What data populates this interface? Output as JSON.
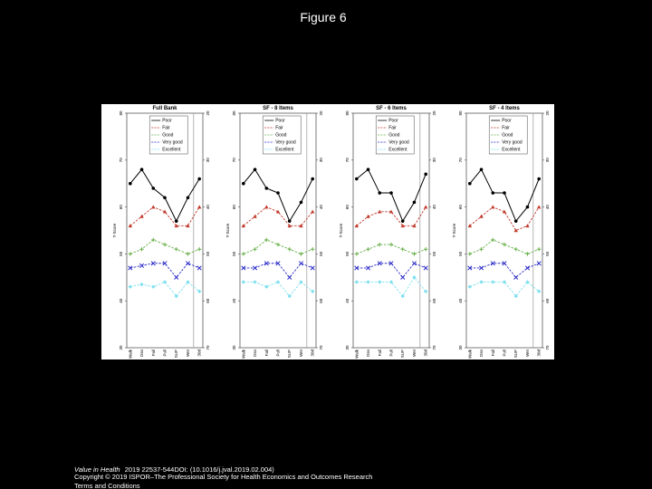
{
  "title": "Figure 6",
  "chart_data": [
    {
      "type": "line",
      "title": "Full Bank",
      "ylabel": "T-Score",
      "categories": [
        "Walk",
        "Dsn",
        "Fall",
        "Pull",
        "SUP",
        "Wet",
        "30d"
      ],
      "ylim": [
        30,
        80
      ],
      "yticks": [
        30,
        40,
        50,
        60,
        70,
        80
      ],
      "y2lim": [
        70,
        20
      ],
      "y2ticks": [
        20,
        30,
        40,
        50,
        60,
        70
      ],
      "series": [
        {
          "name": "Poor",
          "color": "#000000",
          "values": [
            65,
            68,
            64,
            62,
            57,
            62,
            66
          ]
        },
        {
          "name": "Fair",
          "color": "#c0392b",
          "values": [
            56,
            58,
            60,
            59,
            56,
            56,
            60
          ]
        },
        {
          "name": "Good",
          "color": "#6ab04c",
          "values": [
            50,
            51,
            53,
            52,
            51,
            50,
            51
          ]
        },
        {
          "name": "Very good",
          "color": "#2c2cc8",
          "values": [
            47,
            47.5,
            48,
            48,
            45,
            48,
            47
          ]
        },
        {
          "name": "Excellent",
          "color": "#7fe0f0",
          "values": [
            43,
            43.5,
            43,
            44,
            41,
            44,
            42
          ]
        }
      ]
    },
    {
      "type": "line",
      "title": "SF - 8 Items",
      "ylabel": "T-Score",
      "categories": [
        "Walk",
        "Dsn",
        "Fall",
        "Pull",
        "SUP",
        "Wet",
        "30d"
      ],
      "ylim": [
        30,
        80
      ],
      "yticks": [
        30,
        40,
        50,
        60,
        70,
        80
      ],
      "y2lim": [
        70,
        20
      ],
      "y2ticks": [
        20,
        30,
        40,
        50,
        60,
        70
      ],
      "series": [
        {
          "name": "Poor",
          "color": "#000000",
          "values": [
            65,
            68,
            64,
            63,
            57,
            61,
            66
          ]
        },
        {
          "name": "Fair",
          "color": "#c0392b",
          "values": [
            56,
            58,
            60,
            59,
            56,
            56,
            59
          ]
        },
        {
          "name": "Good",
          "color": "#6ab04c",
          "values": [
            50,
            51,
            53,
            52,
            51,
            50,
            51
          ]
        },
        {
          "name": "Very good",
          "color": "#2c2cc8",
          "values": [
            47,
            47,
            48,
            48,
            45,
            48,
            47
          ]
        },
        {
          "name": "Excellent",
          "color": "#7fe0f0",
          "values": [
            44,
            44,
            43,
            44,
            41,
            44,
            42
          ]
        }
      ]
    },
    {
      "type": "line",
      "title": "SF - 6 Items",
      "ylabel": "T-Score",
      "categories": [
        "Walk",
        "Dsn",
        "Fall",
        "Pull",
        "SUP",
        "Wet",
        "30d"
      ],
      "ylim": [
        30,
        80
      ],
      "yticks": [
        30,
        40,
        50,
        60,
        70,
        80
      ],
      "y2lim": [
        70,
        20
      ],
      "y2ticks": [
        20,
        30,
        40,
        50,
        60,
        70
      ],
      "series": [
        {
          "name": "Poor",
          "color": "#000000",
          "values": [
            66,
            68,
            63,
            63,
            57,
            61,
            67
          ]
        },
        {
          "name": "Fair",
          "color": "#c0392b",
          "values": [
            56,
            58,
            59,
            59,
            56,
            56,
            60
          ]
        },
        {
          "name": "Good",
          "color": "#6ab04c",
          "values": [
            50,
            51,
            52,
            52,
            51,
            50,
            51
          ]
        },
        {
          "name": "Very good",
          "color": "#2c2cc8",
          "values": [
            47,
            47,
            48,
            48,
            45,
            48,
            47
          ]
        },
        {
          "name": "Excellent",
          "color": "#7fe0f0",
          "values": [
            44,
            44,
            44,
            44,
            41,
            45,
            42
          ]
        }
      ]
    },
    {
      "type": "line",
      "title": "SF - 4 Items",
      "ylabel": "T-Score",
      "categories": [
        "Walk",
        "Dsn",
        "Fall",
        "Pull",
        "SUP",
        "Wet",
        "30d"
      ],
      "ylim": [
        30,
        80
      ],
      "yticks": [
        30,
        40,
        50,
        60,
        70,
        80
      ],
      "y2lim": [
        70,
        20
      ],
      "y2ticks": [
        20,
        30,
        40,
        50,
        60,
        70
      ],
      "series": [
        {
          "name": "Poor",
          "color": "#000000",
          "values": [
            65,
            68,
            63,
            63,
            57,
            60,
            66
          ]
        },
        {
          "name": "Fair",
          "color": "#c0392b",
          "values": [
            56,
            58,
            60,
            59,
            55,
            56,
            60
          ]
        },
        {
          "name": "Good",
          "color": "#6ab04c",
          "values": [
            50,
            51,
            53,
            52,
            51,
            50,
            51
          ]
        },
        {
          "name": "Very good",
          "color": "#2c2cc8",
          "values": [
            47,
            47,
            48,
            48,
            45,
            47,
            48
          ]
        },
        {
          "name": "Excellent",
          "color": "#7fe0f0",
          "values": [
            43,
            44,
            44,
            44,
            41,
            44,
            42
          ]
        }
      ]
    }
  ],
  "footer": {
    "journal": "Value in Health",
    "citation": "2019 22537-544DOI: (10.1016/j.jval.2019.02.004)",
    "copyright": "Copyright © 2019 ISPOR–The Professional Society for Health Economics and Outcomes Research",
    "link": "Terms and Conditions"
  }
}
